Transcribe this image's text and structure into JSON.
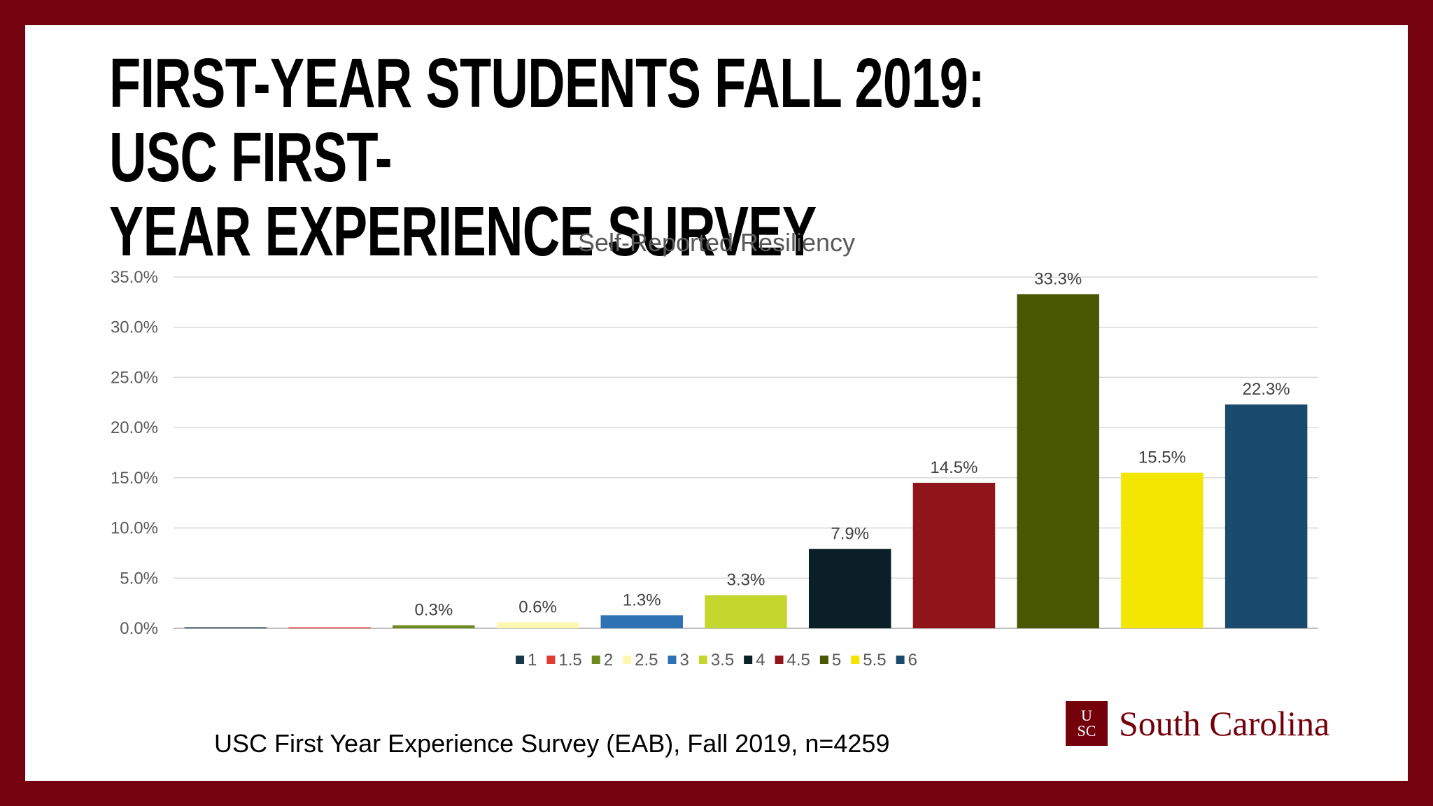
{
  "slide": {
    "title": "FIRST-YEAR STUDENTS FALL 2019:  USC FIRST-\nYEAR EXPERIENCE SURVEY",
    "source": "USC First Year Experience Survey (EAB), Fall 2019, n=4259",
    "logo_mark_top": "U",
    "logo_mark_bottom": "SC",
    "logo_text": "South Carolina"
  },
  "colors": {
    "frame": "#75020f",
    "brand": "#73000a"
  },
  "chart_data": {
    "type": "bar",
    "title": "Self-Reported Resiliency",
    "xlabel": "",
    "ylabel": "",
    "ylim": [
      0,
      35
    ],
    "yticks": [
      "0.0%",
      "5.0%",
      "10.0%",
      "15.0%",
      "20.0%",
      "25.0%",
      "30.0%",
      "35.0%"
    ],
    "grid": true,
    "legend_position": "bottom",
    "categories": [
      "1",
      "1.5",
      "2",
      "2.5",
      "3",
      "3.5",
      "4",
      "4.5",
      "5",
      "5.5",
      "6"
    ],
    "values": [
      0.1,
      0.1,
      0.3,
      0.6,
      1.3,
      3.3,
      7.9,
      14.5,
      33.3,
      15.5,
      22.3
    ],
    "labels": [
      "",
      "",
      "0.3%",
      "0.6%",
      "1.3%",
      "3.3%",
      "7.9%",
      "14.5%",
      "33.3%",
      "15.5%",
      "22.3%"
    ],
    "colors": [
      "#17394a",
      "#e03c31",
      "#6e8a1f",
      "#fff7b0",
      "#2f72b3",
      "#c4d72e",
      "#0a1f26",
      "#8f151b",
      "#4a5703",
      "#f3e600",
      "#1b4a6f"
    ]
  }
}
